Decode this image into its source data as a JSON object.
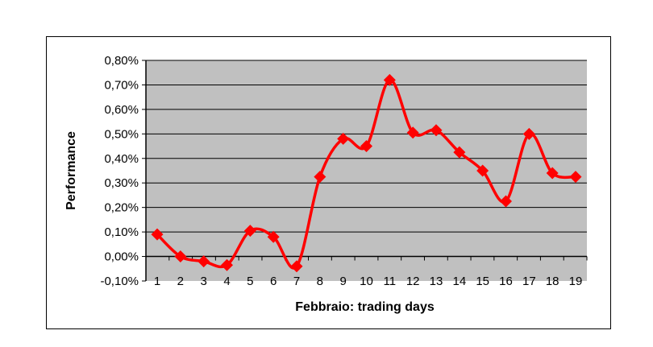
{
  "chart_data": {
    "type": "line",
    "xlabel": "Febbraio: trading days",
    "ylabel": "Performance",
    "categories": [
      "1",
      "2",
      "3",
      "4",
      "5",
      "6",
      "7",
      "8",
      "9",
      "10",
      "11",
      "12",
      "13",
      "14",
      "15",
      "16",
      "17",
      "18",
      "19"
    ],
    "series": [
      {
        "values": [
          0.09,
          0.0,
          -0.02,
          -0.035,
          0.105,
          0.08,
          -0.04,
          0.325,
          0.48,
          0.45,
          0.72,
          0.505,
          0.515,
          0.425,
          0.35,
          0.225,
          0.5,
          0.34,
          0.325
        ]
      }
    ],
    "y_ticks": [
      -0.1,
      0.0,
      0.1,
      0.2,
      0.3,
      0.4,
      0.5,
      0.6,
      0.7,
      0.8
    ],
    "y_tick_labels": [
      "-0,10%",
      "0,00%",
      "0,10%",
      "0,20%",
      "0,30%",
      "0,40%",
      "0,50%",
      "0,60%",
      "0,70%",
      "0,80%"
    ],
    "ylim": [
      -0.1,
      0.8
    ],
    "grid": true,
    "legend": "none",
    "colors": {
      "line": "#ff0000",
      "plot_background": "#c0c0c0",
      "gridline": "#000000"
    }
  }
}
